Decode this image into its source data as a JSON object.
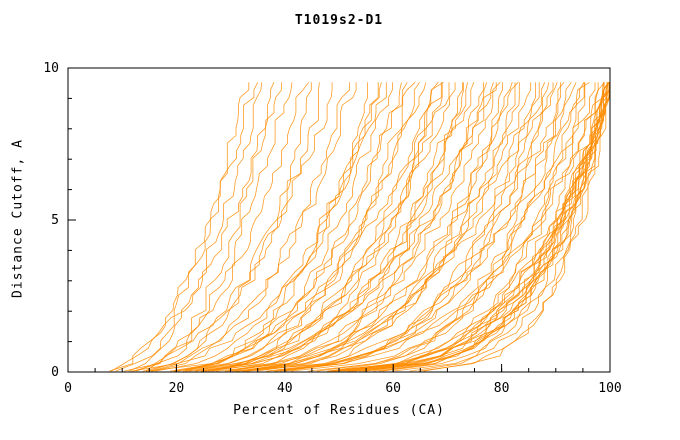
{
  "chart_data": {
    "type": "line",
    "title": "T1019s2-D1",
    "xlabel": "Percent of Residues (CA)",
    "ylabel": "Distance Cutoff, A",
    "xlim": [
      0,
      100
    ],
    "ylim": [
      0,
      10
    ],
    "xticks": [
      0,
      20,
      40,
      60,
      80,
      100
    ],
    "yticks": [
      0,
      5,
      10
    ],
    "x_minor_step": 5,
    "y_minor_step": 1,
    "grid": false,
    "legend": "none",
    "line_color": "#FF8C00",
    "axis_color": "#000000",
    "y_max_drawn": 9.6,
    "curve_format": "[x_percent_at_cutoff_0, x_percent_at_cutoff_10, rise_shape_exponent]",
    "curves": [
      [
        5,
        40,
        2.0
      ],
      [
        6,
        50,
        2.4
      ],
      [
        5,
        60,
        2.8
      ],
      [
        6,
        70,
        3.0
      ],
      [
        5,
        80,
        3.4
      ],
      [
        6,
        90,
        3.8
      ],
      [
        5,
        100,
        4.5
      ],
      [
        8,
        33,
        2.2
      ],
      [
        9,
        36,
        2.0
      ],
      [
        10,
        38,
        2.4
      ],
      [
        7,
        35,
        1.8
      ],
      [
        11,
        41,
        2.2
      ],
      [
        12,
        44,
        2.0
      ],
      [
        10,
        46,
        2.6
      ],
      [
        13,
        48,
        2.2
      ],
      [
        9,
        52,
        2.8
      ],
      [
        11,
        54,
        2.4
      ],
      [
        14,
        56,
        3.0
      ],
      [
        12,
        58,
        2.6
      ],
      [
        15,
        60,
        2.8
      ],
      [
        10,
        62,
        3.2
      ],
      [
        16,
        63,
        2.5
      ],
      [
        13,
        65,
        3.0
      ],
      [
        17,
        66,
        2.7
      ],
      [
        12,
        68,
        3.4
      ],
      [
        18,
        70,
        2.9
      ],
      [
        14,
        71,
        3.1
      ],
      [
        19,
        72,
        2.6
      ],
      [
        15,
        74,
        3.3
      ],
      [
        20,
        75,
        2.8
      ],
      [
        16,
        76,
        3.0
      ],
      [
        21,
        77,
        3.5
      ],
      [
        13,
        78,
        3.2
      ],
      [
        22,
        79,
        2.9
      ],
      [
        17,
        80,
        3.4
      ],
      [
        18,
        82,
        3.6
      ],
      [
        23,
        83,
        3.0
      ],
      [
        19,
        84,
        3.8
      ],
      [
        24,
        85,
        3.2
      ],
      [
        20,
        86,
        3.5
      ],
      [
        25,
        87,
        4.0
      ],
      [
        16,
        88,
        3.3
      ],
      [
        26,
        89,
        3.7
      ],
      [
        21,
        90,
        4.2
      ],
      [
        27,
        91,
        3.4
      ],
      [
        22,
        92,
        3.9
      ],
      [
        28,
        93,
        4.4
      ],
      [
        18,
        94,
        3.6
      ],
      [
        29,
        95,
        4.1
      ],
      [
        23,
        96,
        3.8
      ],
      [
        30,
        97,
        4.5
      ],
      [
        24,
        98,
        4.0
      ],
      [
        31,
        99,
        4.3
      ],
      [
        25,
        100,
        4.8
      ],
      [
        32,
        100,
        4.2
      ],
      [
        26,
        100,
        5.0
      ],
      [
        33,
        101,
        4.4
      ],
      [
        27,
        100,
        5.2
      ],
      [
        34,
        100,
        4.6
      ],
      [
        28,
        101,
        5.4
      ],
      [
        35,
        100,
        4.3
      ],
      [
        29,
        100,
        5.0
      ],
      [
        36,
        101,
        4.7
      ],
      [
        30,
        100,
        5.5
      ],
      [
        37,
        100,
        4.9
      ],
      [
        31,
        101,
        5.2
      ],
      [
        38,
        100,
        5.6
      ],
      [
        40,
        100,
        5.0
      ],
      [
        42,
        101,
        5.8
      ],
      [
        44,
        100,
        5.3
      ],
      [
        45,
        100,
        6.0
      ],
      [
        19,
        58,
        2.3
      ],
      [
        21,
        64,
        2.7
      ],
      [
        23,
        69,
        3.1
      ],
      [
        25,
        73,
        3.3
      ],
      [
        27,
        81,
        3.6
      ],
      [
        33,
        92,
        4.1
      ],
      [
        35,
        96,
        4.4
      ],
      [
        39,
        99,
        4.8
      ]
    ]
  }
}
